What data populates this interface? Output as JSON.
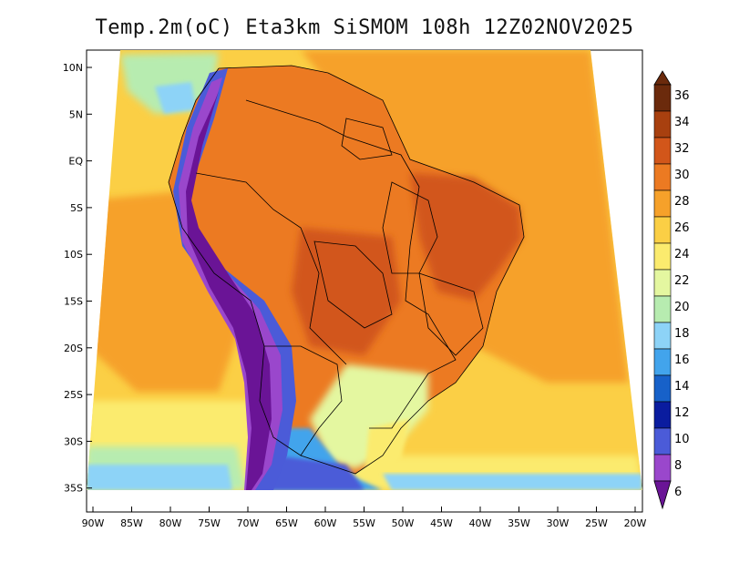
{
  "title": "Temp.2m(oC) Eta3km SiSMOM 108h 12Z02NOV2025",
  "lat_labels": [
    "10N",
    "5N",
    "EQ",
    "5S",
    "10S",
    "15S",
    "20S",
    "25S",
    "30S",
    "35S"
  ],
  "lon_labels": [
    "90W",
    "85W",
    "80W",
    "75W",
    "70W",
    "65W",
    "60W",
    "55W",
    "50W",
    "45W",
    "40W",
    "35W",
    "30W",
    "25W",
    "20W"
  ],
  "colorbar": {
    "labels": [
      "36",
      "34",
      "32",
      "30",
      "28",
      "26",
      "24",
      "22",
      "20",
      "18",
      "16",
      "14",
      "12",
      "10",
      "8",
      "6"
    ],
    "colors": [
      "#6b2a0c",
      "#a8400f",
      "#d2561a",
      "#ec7a22",
      "#f6a12a",
      "#fbcf45",
      "#fbeb6e",
      "#e4f7a0",
      "#b7ecb0",
      "#8dd3f7",
      "#42a4ec",
      "#1761c9",
      "#0a1c9f",
      "#4b5bd8",
      "#9a47cc",
      "#6a1496"
    ]
  },
  "map": {
    "field": "2 m air temperature (°C)",
    "colors": {
      "ocean_warm": "#f6a12a",
      "ocean_mild": "#fbcf45",
      "ocean_cool": "#fbeb6e",
      "amazon": "#ec7a22",
      "northeast": "#d2561a",
      "south": "#e4f7a0",
      "andes_high": "#6a1496",
      "andes_mid": "#9a47cc",
      "andes_low": "#4b5bd8",
      "patagonia_coast": "#42a4ec",
      "pacific_cold": "#8dd3f7",
      "pacific_south": "#b7ecb0",
      "border": "#000000"
    }
  }
}
